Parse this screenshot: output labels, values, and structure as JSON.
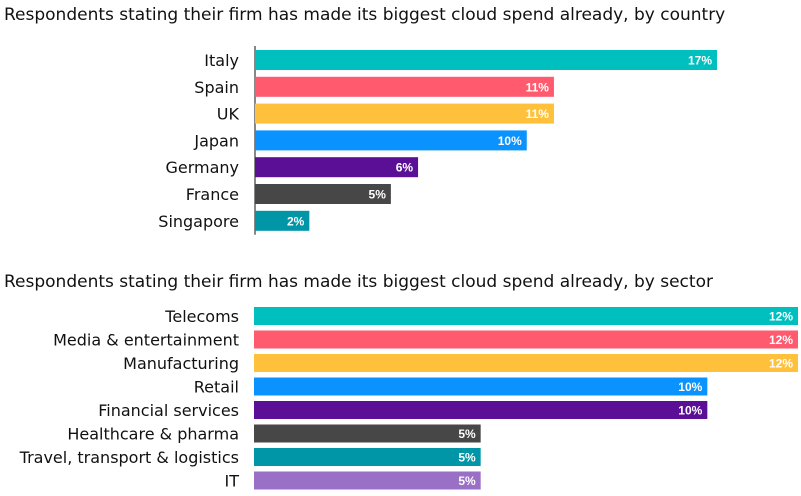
{
  "chart_data": [
    {
      "type": "bar",
      "orientation": "horizontal",
      "title": "Respondents stating their firm has made its biggest cloud spend already, by country",
      "categories": [
        "Italy",
        "Spain",
        "UK",
        "Japan",
        "Germany",
        "France",
        "Singapore"
      ],
      "values": [
        17,
        11,
        11,
        10,
        6,
        5,
        2
      ],
      "value_labels": [
        "17%",
        "11%",
        "11%",
        "10%",
        "6%",
        "5%",
        "2%"
      ],
      "colors": [
        "#00bfbf",
        "#ff5a6e",
        "#ffc13b",
        "#0a93ff",
        "#5a0f96",
        "#474747",
        "#0096a8"
      ],
      "unit": "%",
      "xlim": [
        0,
        17
      ]
    },
    {
      "type": "bar",
      "orientation": "horizontal",
      "title": "Respondents stating their firm has made its biggest cloud spend already, by sector",
      "categories": [
        "Telecoms",
        "Media & entertainment",
        "Manufacturing",
        "Retail",
        "Financial services",
        "Healthcare & pharma",
        "Travel, transport & logistics",
        "IT"
      ],
      "values": [
        12,
        12,
        12,
        10,
        10,
        5,
        5,
        5
      ],
      "value_labels": [
        "12%",
        "12%",
        "12%",
        "10%",
        "10%",
        "5%",
        "5%",
        "5%"
      ],
      "colors": [
        "#00bfbf",
        "#ff5a6e",
        "#ffc13b",
        "#0a93ff",
        "#5a0f96",
        "#474747",
        "#0096a8",
        "#9a6fc6"
      ],
      "unit": "%",
      "xlim": [
        0,
        12
      ]
    }
  ]
}
